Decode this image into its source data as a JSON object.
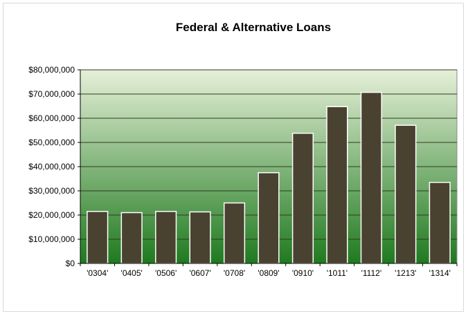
{
  "chart_data": {
    "type": "bar",
    "title": "Federal & Alternative Loans",
    "xlabel": "",
    "ylabel": "",
    "categories": [
      "'0304'",
      "'0405'",
      "'0506'",
      "'0607'",
      "'0708'",
      "'0809'",
      "'0910'",
      "'1011'",
      "'1112'",
      "'1213'",
      "'1314'"
    ],
    "values": [
      21500000,
      21000000,
      21500000,
      21300000,
      25000000,
      37500000,
      53800000,
      64800000,
      70700000,
      57100000,
      33500000
    ],
    "ylim": [
      0,
      80000000
    ],
    "y_ticks": [
      0,
      10000000,
      20000000,
      30000000,
      40000000,
      50000000,
      60000000,
      70000000,
      80000000
    ],
    "y_tick_labels": [
      "$0",
      "$10,000,000",
      "$20,000,000",
      "$30,000,000",
      "$40,000,000",
      "$50,000,000",
      "$60,000,000",
      "$70,000,000",
      "$80,000,000"
    ],
    "grid": true,
    "legend": "none",
    "colors": {
      "bar_fill": "#4a4230",
      "bar_edge": "#ffffff",
      "plot_top": "#e6f0d8",
      "plot_bottom": "#1f7a1f",
      "grid": "#2e3a22"
    }
  }
}
